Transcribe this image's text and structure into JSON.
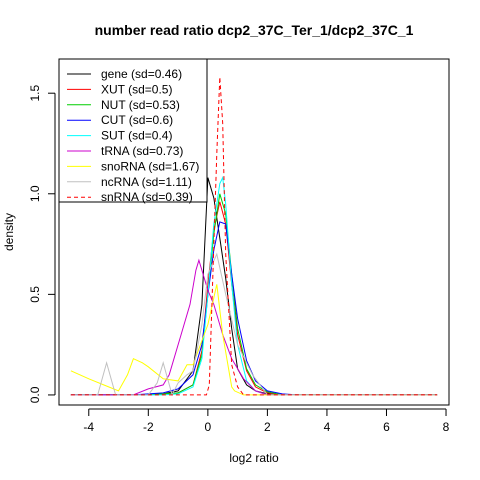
{
  "chart_data": {
    "type": "line",
    "title": "number read ratio dcp2_37C_Ter_1/dcp2_37C_1",
    "xlabel": "log2 ratio",
    "ylabel": "density",
    "xlim": [
      -5.0,
      8.1
    ],
    "ylim": [
      -0.05,
      1.67
    ],
    "x_ticks": [
      -4,
      -2,
      0,
      2,
      4,
      6,
      8
    ],
    "x_tick_labels": [
      "-4",
      "-2",
      "0",
      "2",
      "4",
      "6",
      "8"
    ],
    "y_ticks": [
      0.0,
      0.5,
      1.0,
      1.5
    ],
    "y_tick_labels": [
      "0.0",
      "0.5",
      "1.0",
      "1.5"
    ],
    "grid": false,
    "legend_position": "top-left",
    "series": [
      {
        "name": "gene (sd=0.46)",
        "color": "#000000",
        "dash": false,
        "x": [
          -4.6,
          -3.0,
          -2.0,
          -1.5,
          -1.0,
          -0.5,
          -0.2,
          0.0,
          0.2,
          0.4,
          0.6,
          0.8,
          1.0,
          1.3,
          1.6,
          2.0,
          2.5,
          4.0,
          7.7
        ],
        "y": [
          0.0,
          0.0,
          0.0,
          0.005,
          0.02,
          0.12,
          0.45,
          1.08,
          0.98,
          0.78,
          0.58,
          0.33,
          0.13,
          0.05,
          0.02,
          0.005,
          0.0,
          0.0,
          0.0
        ]
      },
      {
        "name": "XUT (sd=0.5)",
        "color": "#ff0000",
        "dash": false,
        "x": [
          -4.6,
          -2.5,
          -1.5,
          -1.0,
          -0.5,
          -0.2,
          0.0,
          0.2,
          0.4,
          0.6,
          0.8,
          1.0,
          1.3,
          1.6,
          2.0,
          2.5,
          7.7
        ],
        "y": [
          0.0,
          0.0,
          0.005,
          0.01,
          0.05,
          0.22,
          0.55,
          0.82,
          0.96,
          0.85,
          0.55,
          0.3,
          0.12,
          0.04,
          0.01,
          0.0,
          0.0
        ]
      },
      {
        "name": "NUT (sd=0.53)",
        "color": "#00cd00",
        "dash": false,
        "x": [
          -4.6,
          -2.5,
          -1.5,
          -1.0,
          -0.5,
          -0.2,
          0.0,
          0.2,
          0.4,
          0.6,
          0.8,
          1.0,
          1.3,
          1.6,
          2.0,
          2.5,
          7.7
        ],
        "y": [
          0.0,
          0.0,
          0.005,
          0.01,
          0.05,
          0.2,
          0.5,
          0.8,
          1.0,
          0.9,
          0.6,
          0.33,
          0.13,
          0.05,
          0.015,
          0.0,
          0.0
        ]
      },
      {
        "name": "CUT (sd=0.6)",
        "color": "#0000ff",
        "dash": false,
        "x": [
          -4.6,
          -2.5,
          -1.5,
          -1.0,
          -0.5,
          -0.2,
          0.0,
          0.2,
          0.4,
          0.6,
          0.8,
          1.0,
          1.3,
          1.6,
          2.0,
          2.5,
          3.0,
          7.7
        ],
        "y": [
          0.0,
          0.0,
          0.01,
          0.03,
          0.1,
          0.25,
          0.5,
          0.72,
          0.86,
          0.85,
          0.6,
          0.38,
          0.17,
          0.07,
          0.02,
          0.005,
          0.0,
          0.0
        ]
      },
      {
        "name": "SUT (sd=0.4)",
        "color": "#00ffff",
        "dash": false,
        "x": [
          -4.6,
          -2.5,
          -1.5,
          -1.0,
          -0.5,
          -0.2,
          0.0,
          0.2,
          0.4,
          0.5,
          0.6,
          0.8,
          1.0,
          1.3,
          1.6,
          2.0,
          7.7
        ],
        "y": [
          0.0,
          0.0,
          0.0,
          0.005,
          0.04,
          0.18,
          0.5,
          0.85,
          1.05,
          1.08,
          0.95,
          0.55,
          0.25,
          0.07,
          0.02,
          0.0,
          0.0
        ]
      },
      {
        "name": "tRNA (sd=0.73)",
        "color": "#cc00cc",
        "dash": false,
        "x": [
          -4.6,
          -3.0,
          -2.5,
          -2.0,
          -1.5,
          -1.3,
          -0.9,
          -0.6,
          -0.4,
          -0.3,
          0.0,
          0.2,
          0.5,
          0.8,
          1.2,
          1.6,
          2.0,
          7.7
        ],
        "y": [
          0.0,
          0.0,
          0.0,
          0.03,
          0.05,
          0.1,
          0.3,
          0.45,
          0.62,
          0.67,
          0.52,
          0.45,
          0.3,
          0.18,
          0.08,
          0.02,
          0.0,
          0.0
        ]
      },
      {
        "name": "snoRNA (sd=1.67)",
        "color": "#ffff00",
        "dash": false,
        "x": [
          -4.6,
          -4.0,
          -3.5,
          -3.0,
          -2.7,
          -2.5,
          -2.2,
          -2.0,
          -1.5,
          -1.0,
          -0.7,
          -0.5,
          0.0,
          0.3,
          0.5,
          0.8,
          0.9,
          1.2,
          1.6,
          2.0,
          7.7
        ],
        "y": [
          0.12,
          0.08,
          0.05,
          0.02,
          0.1,
          0.18,
          0.16,
          0.14,
          0.08,
          0.07,
          0.15,
          0.15,
          0.35,
          0.55,
          0.3,
          0.04,
          0.02,
          0.0,
          0.0,
          0.0,
          0.0
        ]
      },
      {
        "name": "ncRNA (sd=1.11)",
        "color": "#c0c0c0",
        "dash": false,
        "x": [
          -4.6,
          -3.7,
          -3.4,
          -3.1,
          -2.5,
          -2.0,
          -1.7,
          -1.5,
          -1.2,
          -1.0,
          -0.7,
          -0.5,
          -0.2,
          0.0,
          0.3,
          0.6,
          1.0,
          1.5,
          2.0,
          7.7
        ],
        "y": [
          0.0,
          0.0,
          0.16,
          0.0,
          0.0,
          0.0,
          0.06,
          0.16,
          0.0,
          0.06,
          0.1,
          0.12,
          0.35,
          0.6,
          0.7,
          0.5,
          0.25,
          0.1,
          0.0,
          0.0
        ]
      },
      {
        "name": "snRNA (sd=0.39)",
        "color": "#ff0000",
        "dash": true,
        "x": [
          -4.6,
          -0.15,
          -0.05,
          0.05,
          0.3,
          0.4,
          0.5,
          0.6,
          0.8,
          1.0,
          1.2,
          1.6,
          2.0,
          7.7
        ],
        "y": [
          0.0,
          0.0,
          0.0,
          0.05,
          1.2,
          1.58,
          1.35,
          0.7,
          0.15,
          0.04,
          0.0,
          0.0,
          0.0,
          0.0
        ]
      }
    ]
  }
}
